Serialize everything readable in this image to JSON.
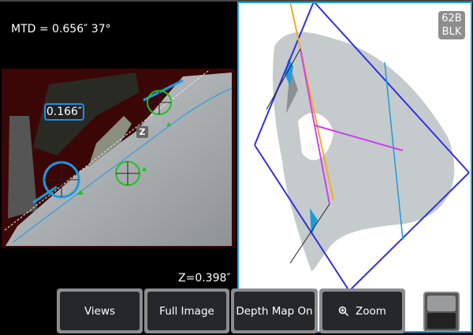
{
  "measurement": {
    "mtd_readout": "MTD = 0.656″ 37°",
    "depth_label": "0.166″",
    "z_marker": "Z",
    "z_readout": "Z=0.398″"
  },
  "view3d": {
    "badge_line1": "62B",
    "badge_line2": "BLK"
  },
  "toolbar": {
    "views": "Views",
    "full_image": "Full Image",
    "depth_map": "Depth Map On",
    "zoom": "Zoom",
    "zoom_icon": "magnifier-plus-icon"
  },
  "colors": {
    "accent": "#1aa3e0",
    "cursor_green": "#22c022",
    "cursor_blue": "#1a9be0",
    "plane_blue": "#3030e8",
    "profile_magenta": "#d040f0",
    "axis_orange": "#f7a820"
  }
}
